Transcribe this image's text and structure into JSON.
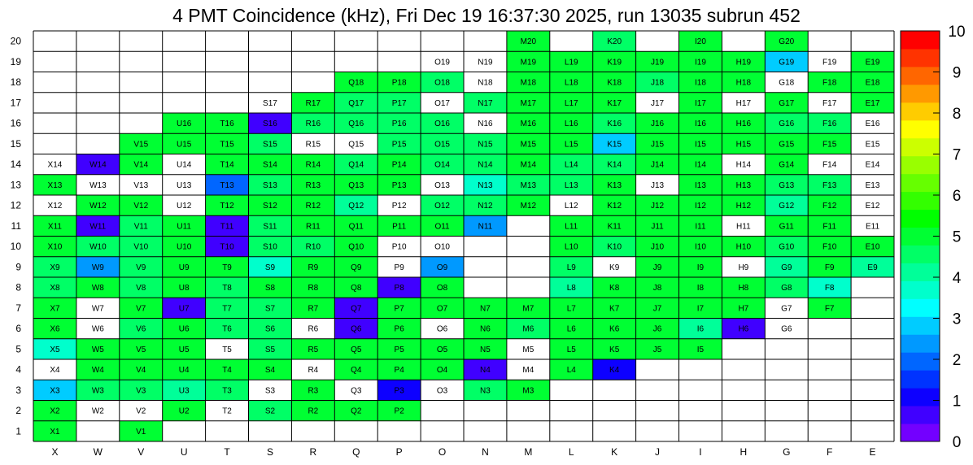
{
  "chart_data": {
    "type": "heatmap",
    "title": "4 PMT Coincidence (kHz), Fri Dec 19 16:37:30 2025, run 13035 subrun 452",
    "columns": [
      "X",
      "W",
      "V",
      "U",
      "T",
      "S",
      "R",
      "Q",
      "P",
      "O",
      "N",
      "M",
      "L",
      "K",
      "J",
      "I",
      "H",
      "G",
      "F",
      "E"
    ],
    "rows": [
      "1",
      "2",
      "3",
      "4",
      "5",
      "6",
      "7",
      "8",
      "9",
      "10",
      "11",
      "12",
      "13",
      "14",
      "15",
      "16",
      "17",
      "18",
      "19",
      "20"
    ],
    "zlim": [
      0,
      10
    ],
    "palette_ticks": [
      "0",
      "1",
      "2",
      "3",
      "4",
      "5",
      "6",
      "7",
      "8",
      "9",
      "10"
    ],
    "grid": true,
    "colorbar_position": "right",
    "values": [
      [
        4.8,
        null,
        4.8,
        null,
        null,
        null,
        null,
        null,
        null,
        null,
        null,
        null,
        null,
        null,
        null,
        null,
        null,
        null,
        null,
        null
      ],
      [
        4.8,
        0,
        0,
        5.2,
        0,
        4.4,
        4.8,
        4.8,
        4.8,
        null,
        null,
        null,
        null,
        null,
        null,
        null,
        null,
        null,
        null,
        null
      ],
      [
        2.8,
        4.6,
        4.6,
        4.0,
        4.6,
        0,
        4.8,
        0,
        1.3,
        0,
        4.6,
        4.8,
        null,
        null,
        null,
        null,
        null,
        null,
        null,
        null
      ],
      [
        0,
        4.8,
        4.8,
        4.8,
        4.8,
        4.8,
        0,
        4.8,
        4.8,
        4.8,
        0.5,
        0,
        4.8,
        1.3,
        null,
        null,
        null,
        null,
        null,
        null
      ],
      [
        3.5,
        4.8,
        4.8,
        5.2,
        0,
        4.6,
        4.8,
        4.8,
        4.8,
        4.8,
        4.8,
        0,
        4.8,
        4.8,
        5.2,
        5.2,
        null,
        null,
        null,
        null
      ],
      [
        5.2,
        0,
        4.6,
        4.8,
        4.6,
        4.6,
        0,
        0.5,
        4.8,
        0,
        4.8,
        4.6,
        4.8,
        4.8,
        4.8,
        4.2,
        0.5,
        0,
        null,
        null
      ],
      [
        4.8,
        0,
        4.8,
        0.5,
        4.6,
        4.6,
        4.8,
        0.5,
        4.8,
        4.8,
        4.8,
        4.8,
        4.8,
        4.8,
        4.8,
        4.8,
        4.8,
        0,
        5.2,
        null
      ],
      [
        4.6,
        4.8,
        4.6,
        4.8,
        4.6,
        4.8,
        4.8,
        4.8,
        0.5,
        4.8,
        null,
        null,
        4.0,
        4.8,
        4.8,
        4.8,
        4.8,
        4.6,
        3.8,
        null
      ],
      [
        4.6,
        2.5,
        4.6,
        4.8,
        4.8,
        3.5,
        4.8,
        4.8,
        0,
        2.5,
        null,
        null,
        4.6,
        0,
        4.8,
        4.8,
        0,
        4.2,
        4.8,
        4.2
      ],
      [
        4.8,
        4.6,
        4.6,
        4.8,
        0.5,
        4.6,
        4.6,
        4.8,
        0,
        0,
        null,
        null,
        4.8,
        4.6,
        4.8,
        4.8,
        4.8,
        4.6,
        4.8,
        4.8
      ],
      [
        4.8,
        0.5,
        4.6,
        4.8,
        0.5,
        4.6,
        4.8,
        4.8,
        4.8,
        4.8,
        2.5,
        null,
        4.8,
        4.8,
        4.8,
        4.8,
        0,
        4.8,
        4.8,
        0
      ],
      [
        0,
        4.8,
        4.8,
        0,
        4.8,
        4.8,
        4.8,
        4.2,
        0,
        4.6,
        4.6,
        4.8,
        0,
        4.8,
        4.8,
        4.8,
        4.8,
        4.2,
        4.8,
        0
      ],
      [
        4.8,
        0,
        0,
        0,
        2.0,
        4.6,
        4.8,
        4.8,
        4.8,
        0,
        3.5,
        4.6,
        4.6,
        4.8,
        0,
        4.8,
        4.8,
        4.6,
        4.6,
        0
      ],
      [
        0,
        0.5,
        4.8,
        0,
        4.8,
        4.8,
        4.8,
        4.6,
        4.8,
        4.6,
        4.6,
        4.8,
        4.6,
        4.4,
        4.8,
        4.8,
        0,
        4.8,
        0,
        0
      ],
      [
        null,
        null,
        4.8,
        4.8,
        4.8,
        4.6,
        0,
        0,
        4.6,
        4.6,
        4.6,
        4.8,
        4.8,
        2.8,
        4.8,
        4.8,
        4.8,
        4.8,
        4.8,
        0
      ],
      [
        null,
        null,
        null,
        4.8,
        4.8,
        0.5,
        4.6,
        4.6,
        4.6,
        4.4,
        0,
        4.8,
        4.8,
        4.6,
        4.8,
        4.8,
        4.8,
        4.6,
        4.6,
        0
      ],
      [
        null,
        null,
        null,
        null,
        null,
        0,
        4.8,
        4.6,
        4.6,
        0,
        4.6,
        4.8,
        4.8,
        4.8,
        0,
        4.8,
        0,
        5.2,
        0,
        4.8
      ],
      [
        null,
        null,
        null,
        null,
        null,
        null,
        null,
        4.8,
        4.8,
        4.6,
        0,
        4.8,
        4.8,
        4.8,
        4.4,
        4.8,
        4.8,
        0,
        4.8,
        4.8
      ],
      [
        null,
        null,
        null,
        null,
        null,
        null,
        null,
        null,
        null,
        0,
        0,
        4.8,
        4.8,
        4.8,
        5.2,
        4.8,
        4.8,
        2.8,
        0,
        4.8
      ],
      [
        null,
        null,
        null,
        null,
        null,
        null,
        null,
        null,
        null,
        null,
        null,
        4.8,
        null,
        4.6,
        null,
        4.8,
        null,
        5.2,
        null,
        null
      ]
    ]
  }
}
